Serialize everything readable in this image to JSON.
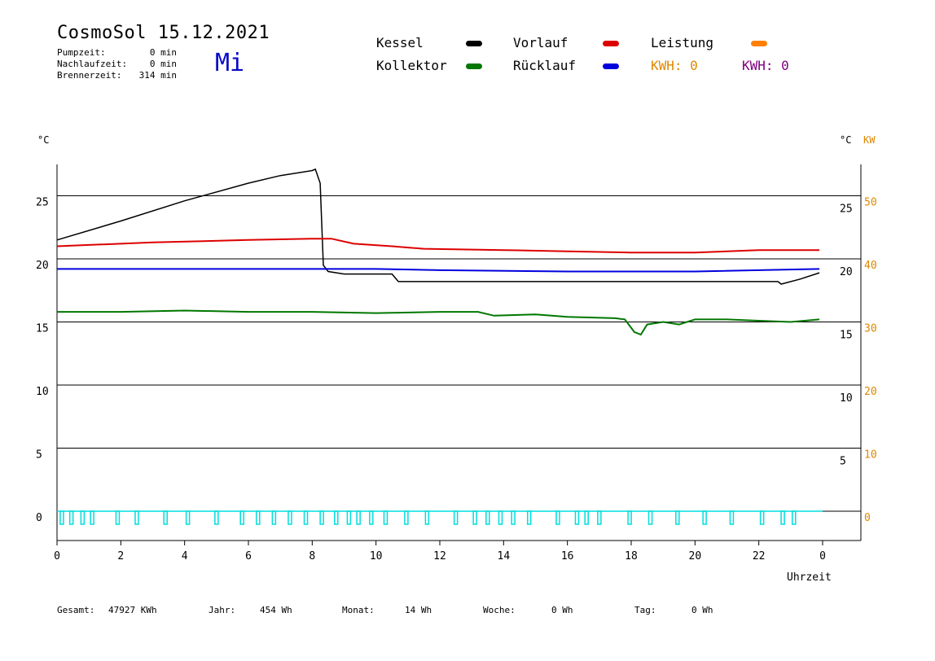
{
  "header": {
    "title": "CosmoSol 15.12.2021",
    "day": "Mi",
    "stats": [
      {
        "label": "Pumpzeit:",
        "value": "0 min"
      },
      {
        "label": "Nachlaufzeit:",
        "value": "0 min"
      },
      {
        "label": "Brennerzeit:",
        "value": "314 min"
      }
    ]
  },
  "legend": {
    "kessel": {
      "label": "Kessel",
      "color": "#000000"
    },
    "vorlauf": {
      "label": "Vorlauf",
      "color": "#dd0000"
    },
    "leistung": {
      "label": "Leistung",
      "color": "#ff8000"
    },
    "kollektor": {
      "label": "Kollektor",
      "color": "#007700"
    },
    "ruecklauf": {
      "label": "Rücklauf",
      "color": "#0000dd"
    },
    "kwh1": {
      "label": "KWH: 0",
      "color": "#dd8800"
    },
    "kwh2": {
      "label": "KWH: 0",
      "color": "#800080"
    }
  },
  "axes": {
    "left_unit": "°C",
    "right_unit": "°C",
    "right_unit2": "KW",
    "xlabel": "Uhrzeit"
  },
  "footer": {
    "gesamt_label": "Gesamt:",
    "gesamt_value": "47927 KWh",
    "jahr_label": "Jahr:",
    "jahr_value": "454 Wh",
    "monat_label": "Monat:",
    "monat_value": "14 Wh",
    "woche_label": "Woche:",
    "woche_value": "0 Wh",
    "tag_label": "Tag:",
    "tag_value": "0 Wh"
  },
  "chart_data": {
    "type": "line",
    "x_range": [
      0,
      24
    ],
    "x_ticks": [
      "0",
      "2",
      "4",
      "6",
      "8",
      "10",
      "12",
      "14",
      "16",
      "18",
      "20",
      "22",
      "0"
    ],
    "left_y": {
      "range": [
        -2,
        28
      ],
      "ticks": [
        0,
        5,
        10,
        15,
        20,
        25
      ]
    },
    "right_temp_ticks": [
      5,
      10,
      15,
      20,
      25
    ],
    "right_kw": {
      "ticks": [
        0,
        10,
        20,
        30,
        40,
        50
      ]
    },
    "grid": "horizontal",
    "series": [
      {
        "name": "Kessel",
        "color": "#000000",
        "points": [
          [
            0,
            21.5
          ],
          [
            2,
            23.0
          ],
          [
            4,
            24.6
          ],
          [
            6,
            26.0
          ],
          [
            7,
            26.6
          ],
          [
            8,
            27.0
          ],
          [
            8.1,
            27.1
          ],
          [
            8.25,
            26.0
          ],
          [
            8.35,
            19.5
          ],
          [
            8.5,
            19.0
          ],
          [
            9,
            18.8
          ],
          [
            10.5,
            18.8
          ],
          [
            10.7,
            18.2
          ],
          [
            14,
            18.2
          ],
          [
            18,
            18.2
          ],
          [
            22.6,
            18.2
          ],
          [
            22.7,
            18.0
          ],
          [
            23.3,
            18.4
          ],
          [
            23.9,
            18.9
          ]
        ]
      },
      {
        "name": "Vorlauf",
        "color": "#dd0000",
        "points": [
          [
            0,
            21.0
          ],
          [
            1,
            21.1
          ],
          [
            3,
            21.3
          ],
          [
            6,
            21.5
          ],
          [
            8,
            21.6
          ],
          [
            8.6,
            21.6
          ],
          [
            9.3,
            21.2
          ],
          [
            10.5,
            21.0
          ],
          [
            11.5,
            20.8
          ],
          [
            14,
            20.7
          ],
          [
            16,
            20.6
          ],
          [
            18,
            20.5
          ],
          [
            20,
            20.5
          ],
          [
            22,
            20.7
          ],
          [
            23.9,
            20.7
          ]
        ]
      },
      {
        "name": "Rücklauf",
        "color": "#0000dd",
        "points": [
          [
            0,
            19.2
          ],
          [
            8.5,
            19.2
          ],
          [
            10,
            19.2
          ],
          [
            12,
            19.1
          ],
          [
            16,
            19.0
          ],
          [
            18,
            19.0
          ],
          [
            20,
            19.0
          ],
          [
            23.9,
            19.2
          ]
        ]
      },
      {
        "name": "Kollektor",
        "color": "#007700",
        "points": [
          [
            0,
            15.8
          ],
          [
            2,
            15.8
          ],
          [
            4,
            15.9
          ],
          [
            6,
            15.8
          ],
          [
            8,
            15.8
          ],
          [
            10,
            15.7
          ],
          [
            12,
            15.8
          ],
          [
            13.2,
            15.8
          ],
          [
            13.7,
            15.5
          ],
          [
            15,
            15.6
          ],
          [
            16,
            15.4
          ],
          [
            17.5,
            15.3
          ],
          [
            17.8,
            15.2
          ],
          [
            18.1,
            14.2
          ],
          [
            18.3,
            14.0
          ],
          [
            18.5,
            14.8
          ],
          [
            19,
            15.0
          ],
          [
            19.5,
            14.8
          ],
          [
            20,
            15.2
          ],
          [
            21,
            15.2
          ],
          [
            22,
            15.1
          ],
          [
            23,
            15.0
          ],
          [
            23.9,
            15.2
          ]
        ]
      }
    ],
    "pump_pulses": [
      0.1,
      0.4,
      0.75,
      1.05,
      1.85,
      2.45,
      3.35,
      4.05,
      4.95,
      5.75,
      6.25,
      6.75,
      7.25,
      7.75,
      8.25,
      8.7,
      9.1,
      9.4,
      9.8,
      10.25,
      10.9,
      11.55,
      12.45,
      13.05,
      13.45,
      13.85,
      14.25,
      14.75,
      15.65,
      16.25,
      16.55,
      16.95,
      17.9,
      18.55,
      19.4,
      20.25,
      21.1,
      22.05,
      22.7,
      23.05
    ]
  }
}
